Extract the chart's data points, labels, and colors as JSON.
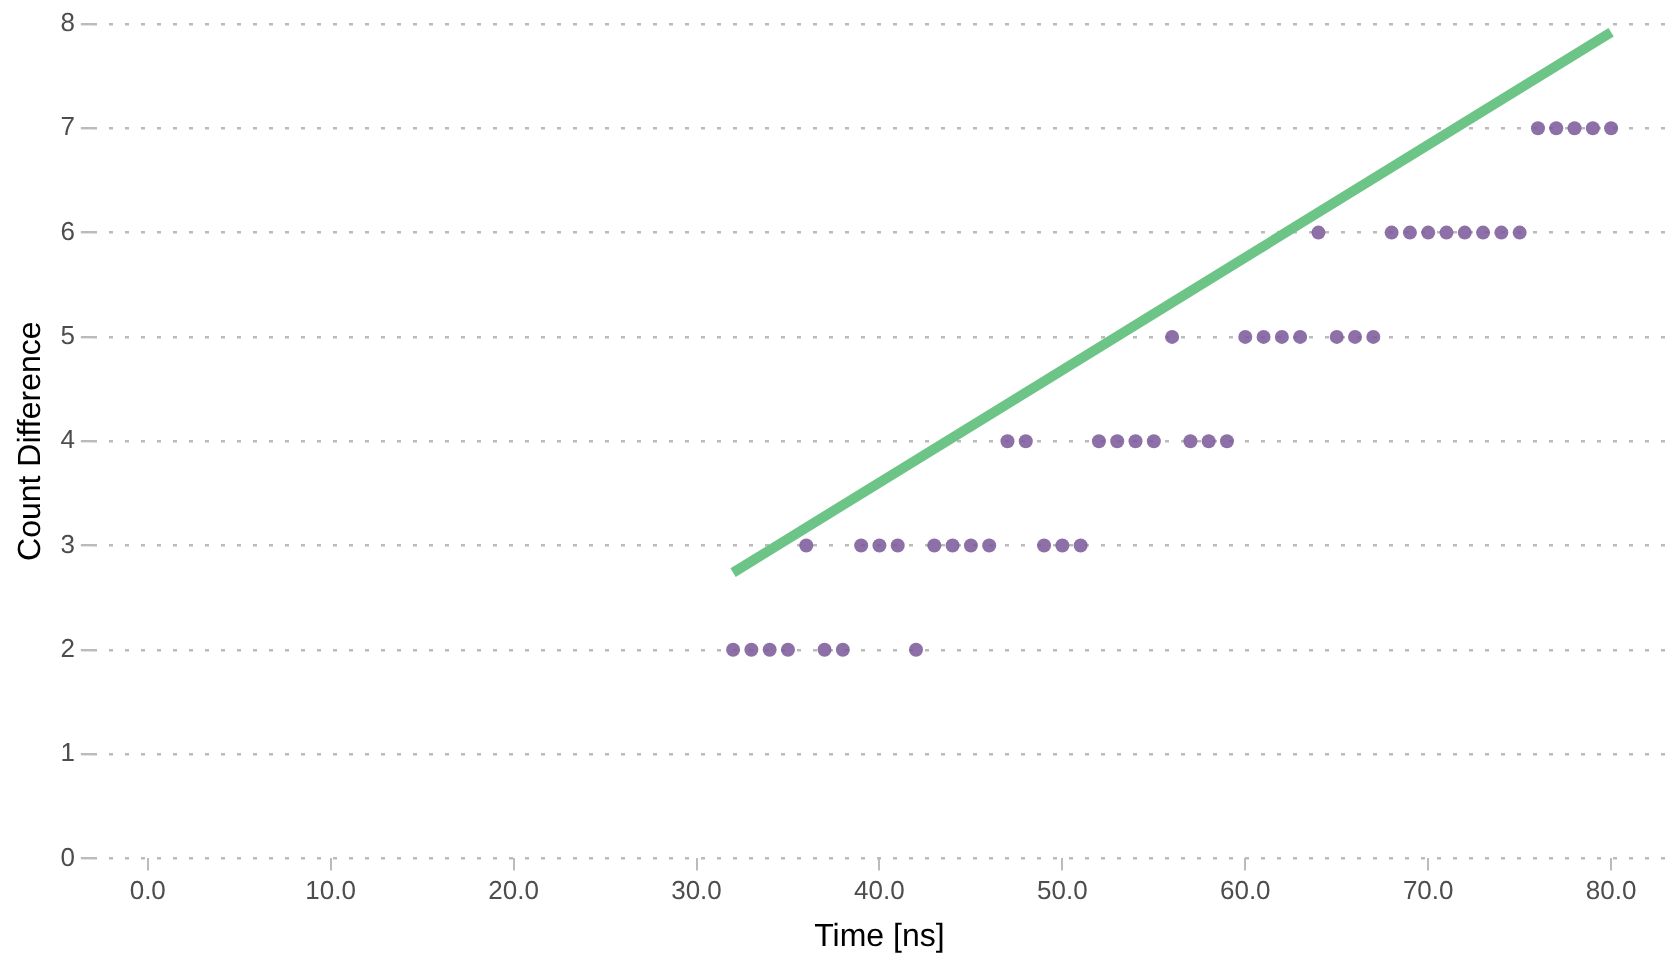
{
  "chart_data": {
    "type": "scatter",
    "xlabel": "Time [ns]",
    "ylabel": "Count Difference",
    "grid": "y",
    "legend": false,
    "xlim": [
      -3,
      83
    ],
    "ylim": [
      0,
      8
    ],
    "xticks": [
      {
        "value": 0,
        "label": "0.0"
      },
      {
        "value": 10,
        "label": "10.0"
      },
      {
        "value": 20,
        "label": "20.0"
      },
      {
        "value": 30,
        "label": "30.0"
      },
      {
        "value": 40,
        "label": "40.0"
      },
      {
        "value": 50,
        "label": "50.0"
      },
      {
        "value": 60,
        "label": "60.0"
      },
      {
        "value": 70,
        "label": "70.0"
      },
      {
        "value": 80,
        "label": "80.0"
      }
    ],
    "yticks": [
      0,
      1,
      2,
      3,
      4,
      5,
      6,
      7,
      8
    ],
    "series": [
      {
        "marker": "circle",
        "color": "#7b5a9a",
        "x": [
          32,
          33,
          34,
          35,
          37,
          38,
          42,
          36,
          39,
          40,
          41,
          43,
          44,
          45,
          46,
          49,
          50,
          51,
          47,
          48,
          52,
          53,
          54,
          55,
          57,
          58,
          59,
          56,
          60,
          61,
          62,
          63,
          65,
          66,
          67,
          64,
          68,
          69,
          70,
          71,
          72,
          73,
          74,
          75,
          76,
          77,
          78,
          79,
          80
        ],
        "values": [
          2,
          2,
          2,
          2,
          2,
          2,
          2,
          3,
          3,
          3,
          3,
          3,
          3,
          3,
          3,
          3,
          3,
          3,
          4,
          4,
          4,
          4,
          4,
          4,
          4,
          4,
          4,
          5,
          5,
          5,
          5,
          5,
          5,
          5,
          5,
          6,
          6,
          6,
          6,
          6,
          6,
          6,
          6,
          6,
          7,
          7,
          7,
          7,
          7
        ]
      },
      {
        "type": "line",
        "color": "#6cc586",
        "line_style": "solid",
        "x": [
          32,
          80
        ],
        "values": [
          2.74,
          7.92
        ]
      }
    ]
  }
}
